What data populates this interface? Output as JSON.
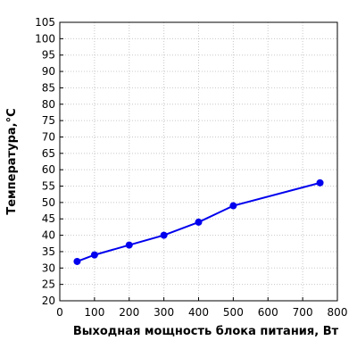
{
  "chart_data": {
    "type": "line",
    "title": "",
    "xlabel": "Выходная мощность блока питания, Вт",
    "ylabel": "Температура,°C",
    "xlim": [
      0,
      800
    ],
    "ylim": [
      20,
      105
    ],
    "x_ticks": [
      0,
      100,
      200,
      300,
      400,
      500,
      600,
      700,
      800
    ],
    "y_ticks": [
      20,
      25,
      30,
      35,
      40,
      45,
      50,
      55,
      60,
      65,
      70,
      75,
      80,
      85,
      90,
      95,
      100,
      105
    ],
    "grid": true,
    "series": [
      {
        "color": "#0000ee",
        "x": [
          50,
          100,
          200,
          300,
          400,
          500,
          750
        ],
        "y": [
          32,
          34,
          37,
          40,
          44,
          49,
          56
        ]
      }
    ]
  }
}
